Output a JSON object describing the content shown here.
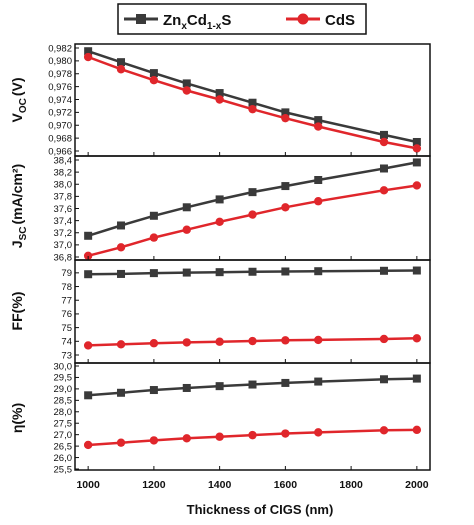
{
  "colors": {
    "ZnCdS": "#3a3a3a",
    "CdS": "#e0262b"
  },
  "legend": {
    "znxcds": {
      "a": "Zn",
      "b": "x",
      "c": "Cd",
      "d": "1-x",
      "e": "S"
    },
    "cds": "CdS"
  },
  "xlabel": "Thickness of CIGS (nm)",
  "chart_data": [
    {
      "type": "line",
      "ylabel": {
        "main": "V",
        "sub": "OC",
        "unit": "(V)"
      },
      "ylim": [
        0.966,
        0.982
      ],
      "yticks": [
        "0,966",
        "0,968",
        "0,970",
        "0,972",
        "0,974",
        "0,976",
        "0,978",
        "0,980",
        "0,982"
      ],
      "x": [
        1000,
        1100,
        1200,
        1300,
        1400,
        1500,
        1600,
        1700,
        1900,
        2000
      ],
      "series": [
        {
          "name": "ZnxCd1-xS",
          "values": [
            0.9815,
            0.9798,
            0.9781,
            0.9765,
            0.975,
            0.9735,
            0.972,
            0.9708,
            0.9685,
            0.9674
          ]
        },
        {
          "name": "CdS",
          "values": [
            0.9806,
            0.9787,
            0.977,
            0.9754,
            0.974,
            0.9725,
            0.9711,
            0.9698,
            0.9674,
            0.9664
          ]
        }
      ]
    },
    {
      "type": "line",
      "ylabel": {
        "main": "J",
        "sub": "SC",
        "unit": "(mA/cm²)"
      },
      "ylim": [
        36.8,
        38.4
      ],
      "yticks": [
        "36,8",
        "37,0",
        "37,2",
        "37,4",
        "37,6",
        "37,8",
        "38,0",
        "38,2",
        "38,4"
      ],
      "x": [
        1000,
        1100,
        1200,
        1300,
        1400,
        1500,
        1600,
        1700,
        1900,
        2000
      ],
      "series": [
        {
          "name": "ZnxCd1-xS",
          "values": [
            37.15,
            37.32,
            37.48,
            37.62,
            37.75,
            37.87,
            37.97,
            38.07,
            38.26,
            38.36
          ]
        },
        {
          "name": "CdS",
          "values": [
            36.82,
            36.96,
            37.12,
            37.25,
            37.38,
            37.5,
            37.62,
            37.72,
            37.9,
            37.98
          ]
        }
      ]
    },
    {
      "type": "line",
      "ylabel": {
        "main": "FF(%)"
      },
      "ylim": [
        73,
        79.5
      ],
      "yticks": [
        "73",
        "74",
        "75",
        "76",
        "77",
        "78",
        "79"
      ],
      "yticks_values": [
        73,
        74,
        75,
        76,
        77,
        78,
        79
      ],
      "x": [
        1000,
        1100,
        1200,
        1300,
        1400,
        1500,
        1600,
        1700,
        1900,
        2000
      ],
      "series": [
        {
          "name": "ZnxCd1-xS",
          "values": [
            78.9,
            78.92,
            78.98,
            79.02,
            79.05,
            79.08,
            79.1,
            79.12,
            79.15,
            79.17
          ]
        },
        {
          "name": "CdS",
          "values": [
            73.7,
            73.78,
            73.86,
            73.92,
            73.97,
            74.02,
            74.07,
            74.1,
            74.17,
            74.22
          ]
        }
      ]
    },
    {
      "type": "line",
      "ylabel": {
        "main": "η(%)"
      },
      "ylim": [
        25.5,
        30.0
      ],
      "yticks": [
        "25,5",
        "26,0",
        "26,5",
        "27,0",
        "27,5",
        "28,0",
        "28,5",
        "29,0",
        "29,5",
        "30,0"
      ],
      "x": [
        1000,
        1100,
        1200,
        1300,
        1400,
        1500,
        1600,
        1700,
        1900,
        2000
      ],
      "series": [
        {
          "name": "ZnxCd1-xS",
          "values": [
            28.72,
            28.83,
            28.95,
            29.04,
            29.12,
            29.19,
            29.26,
            29.32,
            29.42,
            29.45
          ]
        },
        {
          "name": "CdS",
          "values": [
            26.55,
            26.65,
            26.75,
            26.84,
            26.91,
            26.98,
            27.05,
            27.1,
            27.19,
            27.21
          ]
        }
      ]
    }
  ],
  "xticks": [
    "1000",
    "1200",
    "1400",
    "1600",
    "1800",
    "2000"
  ],
  "xticks_values": [
    1000,
    1200,
    1400,
    1600,
    1800,
    2000
  ],
  "xlim": [
    960,
    2040
  ]
}
